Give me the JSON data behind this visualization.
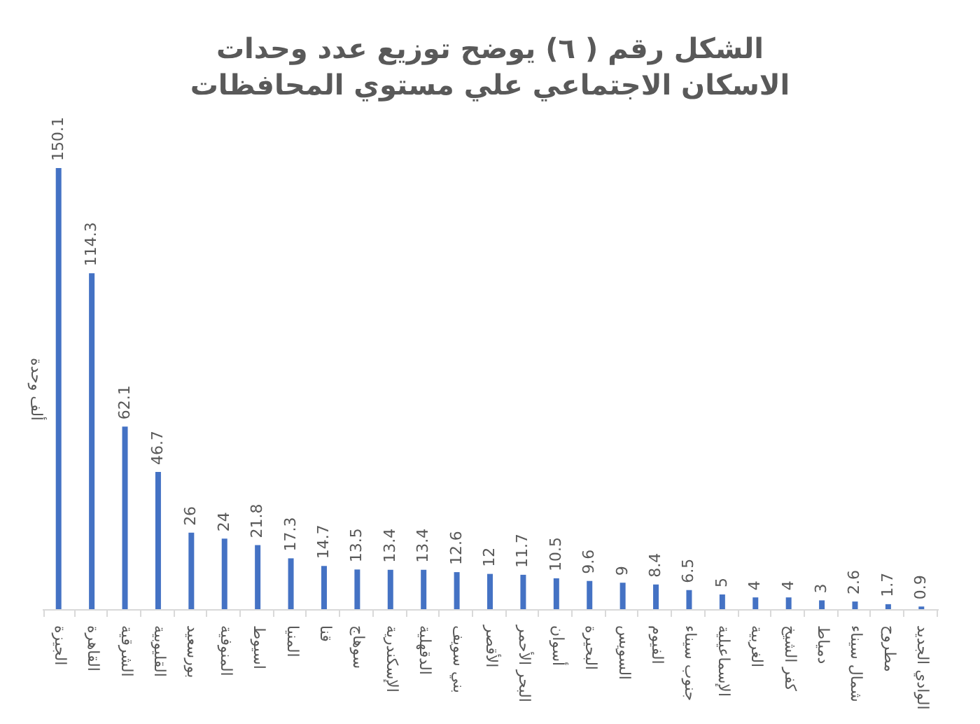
{
  "chart_data": {
    "type": "bar",
    "title": "الشكل رقم ( ٦) يوضح توزيع عدد وحدات\nالاسكان الاجتماعي علي مستوي المحافظات",
    "ylabel": "ألف وحدة",
    "categories": [
      "الجيزة",
      "القاهرة",
      "الشرقية",
      "القليوبية",
      "بورسعيد",
      "المنوفية",
      "اسيوط",
      "المنيا",
      "قنا",
      "سوهاج",
      "الإسكندرية",
      "الدقهلية",
      "بني سويف",
      "الأقصر",
      "البحر الأحمر",
      "أسوان",
      "البحيرة",
      "السويس",
      "الفيوم",
      "جنوب سيناء",
      "الإسماعيلية",
      "الغربية",
      "كفر الشيخ",
      "دمياط",
      "شمال سيناء",
      "مطروح",
      "الوادي الجديد"
    ],
    "values": [
      150.1,
      114.3,
      62.1,
      46.7,
      26,
      24,
      21.8,
      17.3,
      14.7,
      13.5,
      13.4,
      13.4,
      12.6,
      12,
      11.7,
      10.5,
      9.6,
      9,
      8.4,
      6.5,
      5,
      4,
      4,
      3,
      2.6,
      1.7,
      0.9
    ],
    "color": "#4472c4",
    "data_labels": true,
    "grid": false
  }
}
